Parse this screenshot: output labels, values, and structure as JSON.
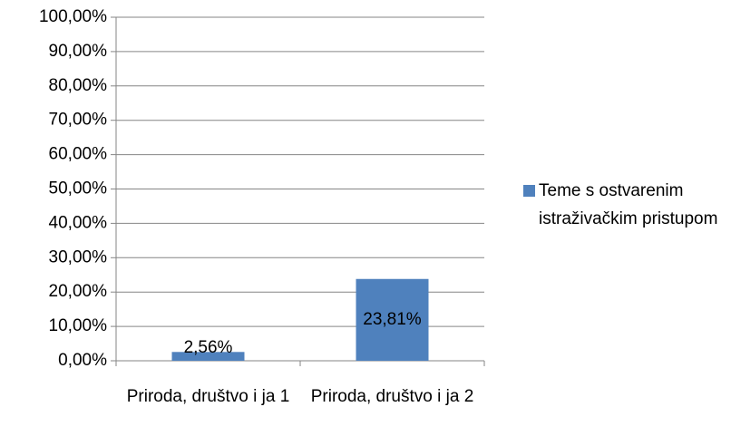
{
  "chart_data": {
    "type": "bar",
    "categories": [
      "Priroda, društvo i ja 1",
      "Priroda, društvo i ja 2"
    ],
    "series": [
      {
        "name": "Teme s ostvarenim istraživačkim pristupom",
        "color": "#4f81bd",
        "values": [
          2.56,
          23.81
        ],
        "value_labels": [
          "2,56%",
          "23,81%"
        ]
      }
    ],
    "ylim": [
      0,
      100
    ],
    "yticks": [
      {
        "value": 0,
        "label": "0,00%"
      },
      {
        "value": 10,
        "label": "10,00%"
      },
      {
        "value": 20,
        "label": "20,00%"
      },
      {
        "value": 30,
        "label": "30,00%"
      },
      {
        "value": 40,
        "label": "40,00%"
      },
      {
        "value": 50,
        "label": "50,00%"
      },
      {
        "value": 60,
        "label": "60,00%"
      },
      {
        "value": 70,
        "label": "70,00%"
      },
      {
        "value": 80,
        "label": "80,00%"
      },
      {
        "value": 90,
        "label": "90,00%"
      },
      {
        "value": 100,
        "label": "100,00%"
      }
    ],
    "grid": true,
    "legend": "right"
  }
}
